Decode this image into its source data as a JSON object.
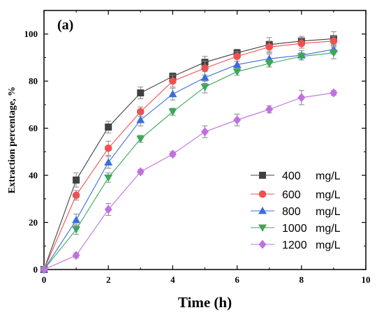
{
  "chart_data": {
    "type": "line",
    "panel_label": "(a)",
    "xlabel": "Time (h)",
    "ylabel": "Extraction percentage, %",
    "xlim": [
      0,
      10
    ],
    "ylim": [
      0,
      110
    ],
    "x_ticks": [
      "0",
      "2",
      "4",
      "6",
      "8",
      "10"
    ],
    "y_ticks": [
      "0",
      "20",
      "40",
      "60",
      "80",
      "100"
    ],
    "x": [
      0,
      1,
      2,
      3,
      4,
      5,
      6,
      7,
      8,
      9
    ],
    "grid": false,
    "legend_position": "bottom-right",
    "series": [
      {
        "name": "400",
        "unit": "mg/L",
        "color": "#404040",
        "marker": "square",
        "values": [
          0,
          38,
          60.5,
          75,
          82,
          88,
          92,
          95.5,
          97,
          98
        ],
        "errors": [
          0,
          3,
          2.5,
          2.5,
          1.5,
          2.5,
          1.5,
          3,
          2,
          3
        ]
      },
      {
        "name": "600",
        "unit": "mg/L",
        "color": "#f05050",
        "marker": "circle",
        "values": [
          0,
          31.5,
          51.5,
          67,
          80,
          85.5,
          90.5,
          94.5,
          96,
          97
        ],
        "errors": [
          0,
          2,
          3,
          2,
          2.5,
          3,
          2,
          2.5,
          2,
          2
        ]
      },
      {
        "name": "800",
        "unit": "mg/L",
        "color": "#3b6fd8",
        "marker": "triangle-up",
        "values": [
          0,
          21,
          45.5,
          63.5,
          74.5,
          81.5,
          87,
          89.5,
          91,
          93.5
        ],
        "errors": [
          0,
          2.5,
          2.5,
          2.5,
          2.5,
          2.5,
          1.5,
          2,
          2,
          2
        ]
      },
      {
        "name": "1000",
        "unit": "mg/L",
        "color": "#3aa85a",
        "marker": "triangle-down",
        "values": [
          0,
          17,
          39,
          55.5,
          67,
          77.5,
          84,
          87.5,
          90.5,
          92
        ],
        "errors": [
          0,
          2,
          2,
          1.5,
          1.5,
          2.5,
          1.5,
          1.5,
          1.5,
          2.5
        ]
      },
      {
        "name": "1200",
        "unit": "mg/L",
        "color": "#c070e0",
        "marker": "diamond",
        "values": [
          0,
          6,
          25.5,
          41.5,
          49,
          58.5,
          63.5,
          68,
          73,
          75
        ],
        "errors": [
          0,
          1,
          2.5,
          1,
          1,
          2.5,
          2.5,
          1.5,
          3,
          1
        ]
      }
    ]
  }
}
